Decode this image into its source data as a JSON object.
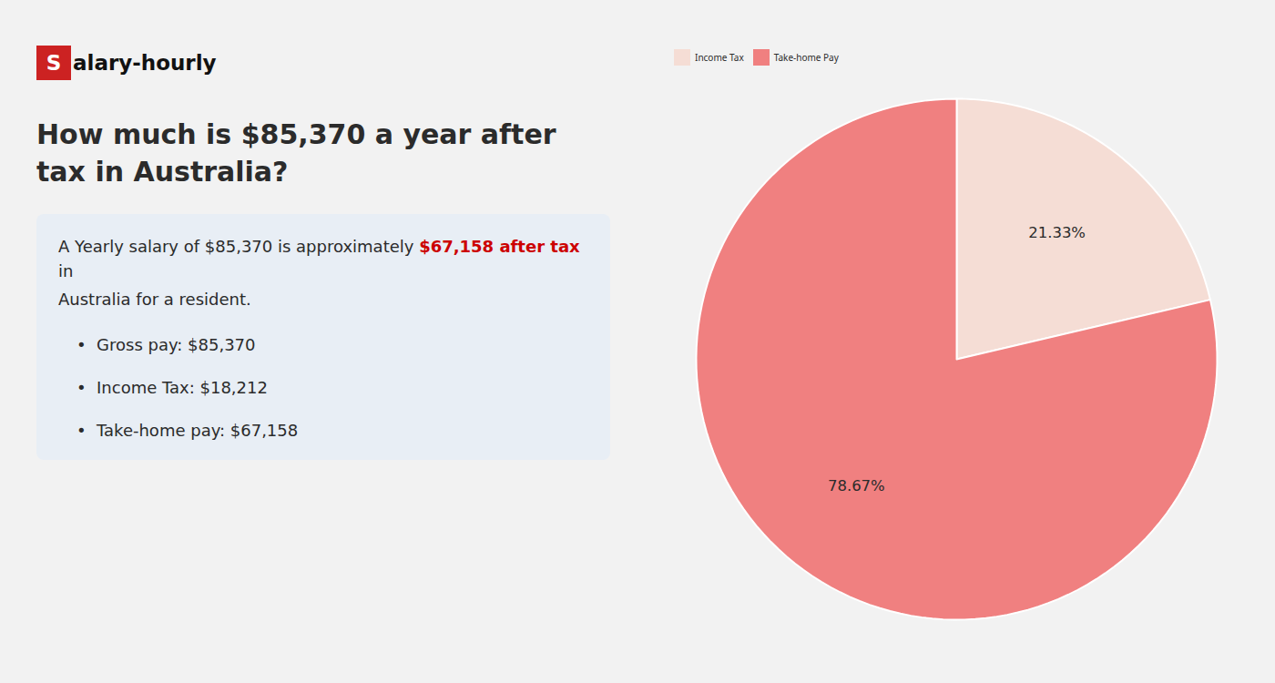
{
  "chart_data": {
    "type": "pie",
    "title": "How much is $85,370 a year after tax in Australia?",
    "categories": [
      "Income Tax",
      "Take-home Pay"
    ],
    "values": [
      21.33,
      78.67
    ],
    "value_labels": [
      "21.33%",
      "78.67%"
    ],
    "data_labels": true,
    "colors": [
      "#f5ddd5",
      "#f08080"
    ],
    "legend": "top",
    "annotations": [
      [
        {
          "text": "S",
          "color": "#cc2222"
        },
        {
          "text": "alary-hourly"
        }
      ],
      [
        {
          "text": "A Yearly salary of $85,370 is approximately "
        },
        {
          "text": "$67,158 after tax",
          "color": "#cc0000"
        },
        {
          "text": " in"
        }
      ],
      "Australia for a resident.",
      "•  Gross pay: $85,370",
      "•  Income Tax: $18,212",
      "•  Take-home pay: $67,158"
    ]
  }
}
